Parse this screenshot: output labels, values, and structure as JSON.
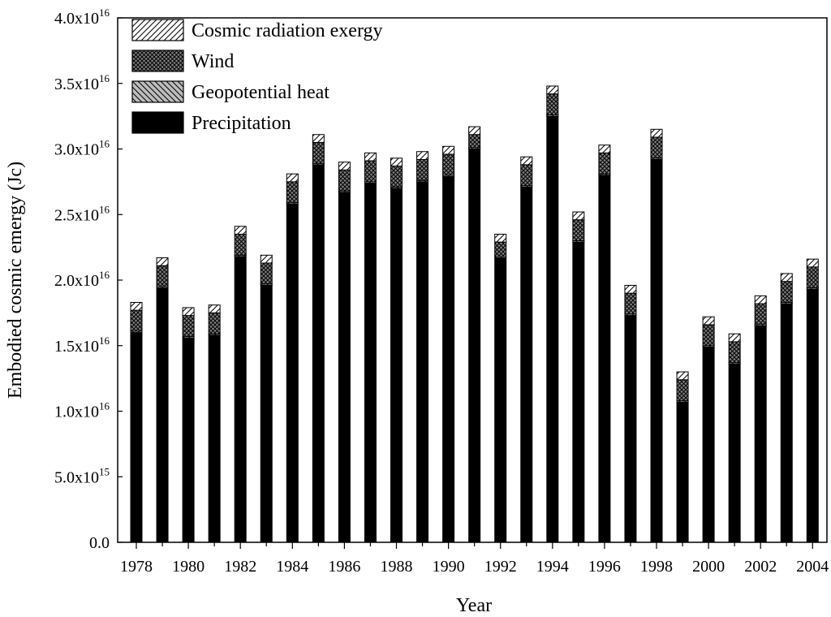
{
  "chart_data": {
    "type": "bar",
    "stacked": true,
    "title": "",
    "xlabel": "Year",
    "ylabel": "Embodied cosmic emergy (Jc)",
    "ylim": [
      0,
      4e+16
    ],
    "yticks": [
      {
        "value": 0,
        "mantissa": "0.0",
        "exponent": ""
      },
      {
        "value": 5000000000000000.0,
        "mantissa": "5.0x10",
        "exponent": "15"
      },
      {
        "value": 1e+16,
        "mantissa": "1.0x10",
        "exponent": "16"
      },
      {
        "value": 1.5e+16,
        "mantissa": "1.5x10",
        "exponent": "16"
      },
      {
        "value": 2e+16,
        "mantissa": "2.0x10",
        "exponent": "16"
      },
      {
        "value": 2.5e+16,
        "mantissa": "2.5x10",
        "exponent": "16"
      },
      {
        "value": 3e+16,
        "mantissa": "3.0x10",
        "exponent": "16"
      },
      {
        "value": 3.5e+16,
        "mantissa": "3.5x10",
        "exponent": "16"
      },
      {
        "value": 4e+16,
        "mantissa": "4.0x10",
        "exponent": "16"
      }
    ],
    "categories": [
      "1978",
      "1979",
      "1980",
      "1981",
      "1982",
      "1983",
      "1984",
      "1985",
      "1986",
      "1987",
      "1988",
      "1989",
      "1990",
      "1991",
      "1992",
      "1993",
      "1994",
      "1995",
      "1996",
      "1997",
      "1998",
      "1999",
      "2000",
      "2001",
      "2002",
      "2003",
      "2004"
    ],
    "xtick_labels": [
      "1978",
      "1980",
      "1982",
      "1984",
      "1986",
      "1988",
      "1990",
      "1992",
      "1994",
      "1996",
      "1998",
      "2000",
      "2002",
      "2004"
    ],
    "legend_position": "top-left",
    "legend_order": [
      "Cosmic radiation exergy",
      "Wind",
      "Geopotential heat",
      "Precipitation"
    ],
    "series": [
      {
        "name": "Precipitation",
        "pattern": "solid",
        "values": [
          1.6e+16,
          1.94e+16,
          1.56e+16,
          1.58e+16,
          2.18e+16,
          1.96e+16,
          2.58e+16,
          2.88e+16,
          2.67e+16,
          2.74e+16,
          2.7e+16,
          2.75e+16,
          2.79e+16,
          3e+16,
          2.17e+16,
          2.71e+16,
          3.25e+16,
          2.29e+16,
          2.8e+16,
          1.73e+16,
          2.92e+16,
          1.07e+16,
          1.49e+16,
          1.36e+16,
          1.65e+16,
          1.82e+16,
          1.93e+16
        ]
      },
      {
        "name": "Geopotential heat",
        "pattern": "hatch-back",
        "values": [
          100000000000000.0,
          100000000000000.0,
          100000000000000.0,
          100000000000000.0,
          100000000000000.0,
          100000000000000.0,
          100000000000000.0,
          100000000000000.0,
          100000000000000.0,
          100000000000000.0,
          100000000000000.0,
          100000000000000.0,
          100000000000000.0,
          100000000000000.0,
          100000000000000.0,
          100000000000000.0,
          100000000000000.0,
          100000000000000.0,
          100000000000000.0,
          100000000000000.0,
          100000000000000.0,
          100000000000000.0,
          100000000000000.0,
          100000000000000.0,
          100000000000000.0,
          100000000000000.0,
          100000000000000.0
        ]
      },
      {
        "name": "Wind",
        "pattern": "crosshatch",
        "values": [
          1600000000000000.0,
          1600000000000000.0,
          1600000000000000.0,
          1600000000000000.0,
          1600000000000000.0,
          1600000000000000.0,
          1600000000000000.0,
          1600000000000000.0,
          1600000000000000.0,
          1600000000000000.0,
          1600000000000000.0,
          1600000000000000.0,
          1600000000000000.0,
          1000000000000000.0,
          1100000000000000.0,
          1600000000000000.0,
          1600000000000000.0,
          1600000000000000.0,
          1600000000000000.0,
          1600000000000000.0,
          1600000000000000.0,
          1600000000000000.0,
          1600000000000000.0,
          1600000000000000.0,
          1600000000000000.0,
          1600000000000000.0,
          1600000000000000.0
        ]
      },
      {
        "name": "Cosmic radiation exergy",
        "pattern": "hatch-forward",
        "values": [
          600000000000000.0,
          600000000000000.0,
          600000000000000.0,
          600000000000000.0,
          600000000000000.0,
          600000000000000.0,
          600000000000000.0,
          600000000000000.0,
          600000000000000.0,
          600000000000000.0,
          600000000000000.0,
          600000000000000.0,
          600000000000000.0,
          600000000000000.0,
          600000000000000.0,
          600000000000000.0,
          600000000000000.0,
          600000000000000.0,
          600000000000000.0,
          600000000000000.0,
          600000000000000.0,
          600000000000000.0,
          600000000000000.0,
          600000000000000.0,
          600000000000000.0,
          600000000000000.0,
          600000000000000.0
        ]
      }
    ]
  }
}
